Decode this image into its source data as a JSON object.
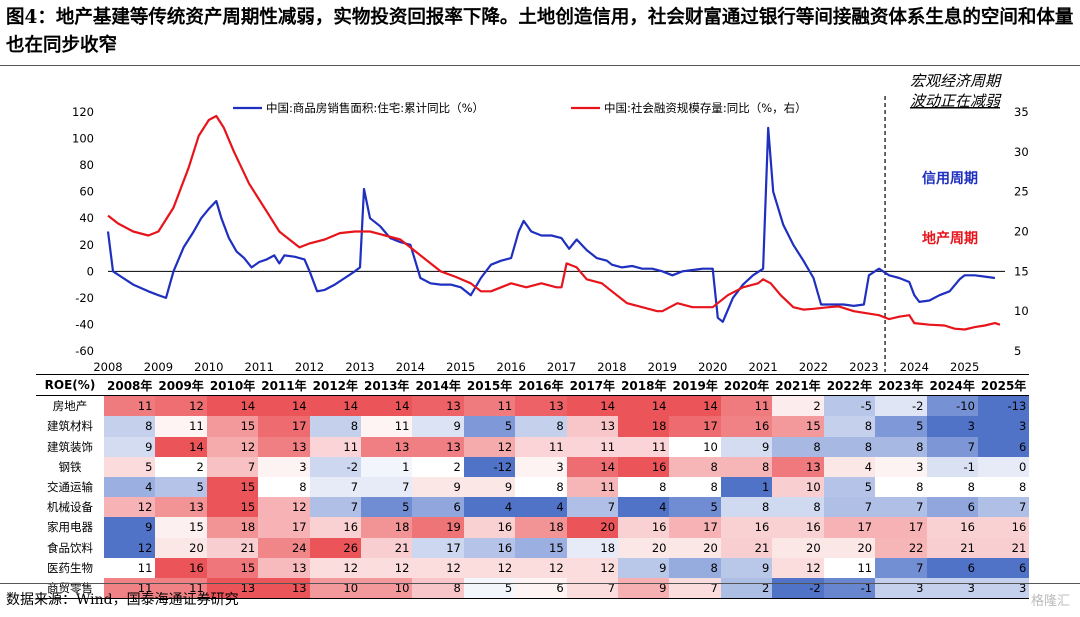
{
  "title": "图4：地产基建等传统资产周期性减弱，实物投资回报率下降。土地创造信用，社会财富通过银行等间接融资体系生息的空间和体量也在同步收窄",
  "source": "数据来源：Wind，国泰海通证券研究",
  "watermark": "格隆汇",
  "chart_data": {
    "type": "line",
    "x_ticks": [
      "2008",
      "2009",
      "2010",
      "2011",
      "2012",
      "2013",
      "2014",
      "2015",
      "2016",
      "2017",
      "2018",
      "2019",
      "2020",
      "2021",
      "2022",
      "2023",
      "2024",
      "2025"
    ],
    "ylim_left": [
      -60,
      120
    ],
    "yticks_left": [
      -60,
      -40,
      -20,
      0,
      20,
      40,
      60,
      80,
      100,
      120
    ],
    "ylim_right": [
      5,
      35
    ],
    "yticks_right": [
      5,
      10,
      15,
      20,
      25,
      30,
      35
    ],
    "annotations": {
      "top_right": "宏观经济周期波动正在减弱",
      "blue_label": "信用周期",
      "red_label": "地产周期"
    },
    "series": [
      {
        "name": "中国:商品房销售面积:住宅:累计同比（%）",
        "axis": "left",
        "color": "#1f2fbf",
        "points": [
          [
            2008.0,
            30
          ],
          [
            2008.1,
            0
          ],
          [
            2008.3,
            -5
          ],
          [
            2008.5,
            -10
          ],
          [
            2008.8,
            -15
          ],
          [
            2009.0,
            -18
          ],
          [
            2009.15,
            -20
          ],
          [
            2009.3,
            0
          ],
          [
            2009.5,
            18
          ],
          [
            2009.7,
            30
          ],
          [
            2009.85,
            40
          ],
          [
            2010.0,
            47
          ],
          [
            2010.15,
            53
          ],
          [
            2010.25,
            40
          ],
          [
            2010.4,
            25
          ],
          [
            2010.55,
            15
          ],
          [
            2010.7,
            10
          ],
          [
            2010.85,
            3
          ],
          [
            2011.0,
            7
          ],
          [
            2011.15,
            9
          ],
          [
            2011.3,
            12
          ],
          [
            2011.4,
            6
          ],
          [
            2011.5,
            12
          ],
          [
            2011.7,
            11
          ],
          [
            2011.9,
            9
          ],
          [
            2012.0,
            0
          ],
          [
            2012.15,
            -15
          ],
          [
            2012.3,
            -14
          ],
          [
            2012.5,
            -10
          ],
          [
            2012.7,
            -5
          ],
          [
            2012.9,
            0
          ],
          [
            2013.0,
            3
          ],
          [
            2013.08,
            62
          ],
          [
            2013.2,
            40
          ],
          [
            2013.4,
            34
          ],
          [
            2013.6,
            25
          ],
          [
            2013.8,
            22
          ],
          [
            2014.0,
            20
          ],
          [
            2014.2,
            -5
          ],
          [
            2014.4,
            -9
          ],
          [
            2014.6,
            -10
          ],
          [
            2014.8,
            -10
          ],
          [
            2015.0,
            -12
          ],
          [
            2015.2,
            -18
          ],
          [
            2015.4,
            -5
          ],
          [
            2015.6,
            5
          ],
          [
            2015.8,
            8
          ],
          [
            2016.0,
            10
          ],
          [
            2016.15,
            30
          ],
          [
            2016.25,
            38
          ],
          [
            2016.4,
            30
          ],
          [
            2016.6,
            27
          ],
          [
            2016.8,
            27
          ],
          [
            2017.0,
            25
          ],
          [
            2017.15,
            17
          ],
          [
            2017.3,
            24
          ],
          [
            2017.5,
            16
          ],
          [
            2017.7,
            10
          ],
          [
            2017.9,
            8
          ],
          [
            2018.0,
            5
          ],
          [
            2018.2,
            3
          ],
          [
            2018.4,
            4
          ],
          [
            2018.6,
            2
          ],
          [
            2018.8,
            2
          ],
          [
            2019.0,
            0
          ],
          [
            2019.2,
            -3
          ],
          [
            2019.4,
            0
          ],
          [
            2019.6,
            1
          ],
          [
            2019.8,
            2
          ],
          [
            2020.0,
            2
          ],
          [
            2020.1,
            -35
          ],
          [
            2020.2,
            -38
          ],
          [
            2020.4,
            -20
          ],
          [
            2020.6,
            -10
          ],
          [
            2020.8,
            -3
          ],
          [
            2021.0,
            2
          ],
          [
            2021.1,
            108
          ],
          [
            2021.2,
            60
          ],
          [
            2021.4,
            35
          ],
          [
            2021.6,
            20
          ],
          [
            2021.8,
            8
          ],
          [
            2022.0,
            -5
          ],
          [
            2022.15,
            -25
          ],
          [
            2022.35,
            -25
          ],
          [
            2022.6,
            -25
          ],
          [
            2022.8,
            -26
          ],
          [
            2023.0,
            -25
          ],
          [
            2023.1,
            -3
          ],
          [
            2023.3,
            2
          ],
          [
            2023.5,
            -3
          ],
          [
            2023.7,
            -5
          ],
          [
            2023.9,
            -8
          ],
          [
            2024.0,
            -18
          ],
          [
            2024.1,
            -23
          ],
          [
            2024.3,
            -22
          ],
          [
            2024.5,
            -18
          ],
          [
            2024.7,
            -15
          ],
          [
            2024.9,
            -6
          ],
          [
            2025.0,
            -3
          ],
          [
            2025.2,
            -3
          ],
          [
            2025.4,
            -4
          ],
          [
            2025.6,
            -5
          ]
        ]
      },
      {
        "name": "中国:社会融资规模存量:同比（%，右）",
        "axis": "right",
        "color": "#e8141b",
        "points": [
          [
            2008.0,
            22
          ],
          [
            2008.2,
            21
          ],
          [
            2008.5,
            20
          ],
          [
            2008.8,
            19.5
          ],
          [
            2009.0,
            20
          ],
          [
            2009.3,
            23
          ],
          [
            2009.6,
            28
          ],
          [
            2009.8,
            32
          ],
          [
            2010.0,
            34
          ],
          [
            2010.15,
            34.5
          ],
          [
            2010.3,
            33
          ],
          [
            2010.5,
            30
          ],
          [
            2010.8,
            26
          ],
          [
            2011.0,
            24
          ],
          [
            2011.2,
            22
          ],
          [
            2011.4,
            20
          ],
          [
            2011.6,
            19
          ],
          [
            2011.8,
            18
          ],
          [
            2012.0,
            18.5
          ],
          [
            2012.3,
            19
          ],
          [
            2012.6,
            19.8
          ],
          [
            2012.9,
            20
          ],
          [
            2013.2,
            20
          ],
          [
            2013.5,
            19.5
          ],
          [
            2013.8,
            19
          ],
          [
            2014.0,
            18
          ],
          [
            2014.3,
            16.5
          ],
          [
            2014.6,
            15
          ],
          [
            2014.9,
            14.3
          ],
          [
            2015.2,
            13.5
          ],
          [
            2015.4,
            12.5
          ],
          [
            2015.6,
            12.5
          ],
          [
            2015.8,
            13
          ],
          [
            2016.0,
            13.5
          ],
          [
            2016.3,
            13
          ],
          [
            2016.6,
            13.5
          ],
          [
            2016.9,
            13
          ],
          [
            2017.0,
            13
          ],
          [
            2017.1,
            16
          ],
          [
            2017.3,
            15.5
          ],
          [
            2017.5,
            14
          ],
          [
            2017.8,
            13.5
          ],
          [
            2018.0,
            12.5
          ],
          [
            2018.3,
            11
          ],
          [
            2018.6,
            10.5
          ],
          [
            2018.9,
            10
          ],
          [
            2019.0,
            10
          ],
          [
            2019.3,
            11
          ],
          [
            2019.6,
            10.5
          ],
          [
            2019.9,
            10.5
          ],
          [
            2020.0,
            10.5
          ],
          [
            2020.3,
            12
          ],
          [
            2020.6,
            13
          ],
          [
            2020.9,
            13.5
          ],
          [
            2021.0,
            14
          ],
          [
            2021.15,
            13.5
          ],
          [
            2021.35,
            12
          ],
          [
            2021.6,
            10.5
          ],
          [
            2021.8,
            10.2
          ],
          [
            2022.0,
            10.3
          ],
          [
            2022.3,
            10.5
          ],
          [
            2022.5,
            10.6
          ],
          [
            2022.8,
            10
          ],
          [
            2023.0,
            9.8
          ],
          [
            2023.3,
            9.5
          ],
          [
            2023.5,
            9
          ],
          [
            2023.7,
            9.3
          ],
          [
            2023.9,
            9.5
          ],
          [
            2024.0,
            8.5
          ],
          [
            2024.3,
            8.3
          ],
          [
            2024.6,
            8.2
          ],
          [
            2024.8,
            7.8
          ],
          [
            2025.0,
            7.7
          ],
          [
            2025.2,
            8
          ],
          [
            2025.4,
            8.2
          ],
          [
            2025.6,
            8.5
          ],
          [
            2025.7,
            8.3
          ]
        ]
      }
    ]
  },
  "table": {
    "corner": "ROE(%)",
    "years": [
      "2008年",
      "2009年",
      "2010年",
      "2011年",
      "2012年",
      "2013年",
      "2014年",
      "2015年",
      "2016年",
      "2017年",
      "2018年",
      "2019年",
      "2020年",
      "2021年",
      "2022年",
      "2023年",
      "2024年",
      "2025年"
    ],
    "rows": [
      {
        "label": "房地产",
        "values": [
          11,
          12,
          14,
          14,
          14,
          14,
          13,
          11,
          13,
          14,
          14,
          14,
          11,
          2,
          -5,
          -2,
          -10,
          -13
        ]
      },
      {
        "label": "建筑材料",
        "values": [
          8,
          11,
          15,
          17,
          8,
          11,
          9,
          5,
          8,
          13,
          18,
          17,
          16,
          15,
          8,
          5,
          3,
          3
        ]
      },
      {
        "label": "建筑装饰",
        "values": [
          9,
          14,
          12,
          13,
          11,
          13,
          13,
          12,
          11,
          11,
          11,
          10,
          9,
          8,
          8,
          8,
          7,
          6
        ]
      },
      {
        "label": "钢铁",
        "values": [
          5,
          2,
          7,
          3,
          -2,
          1,
          2,
          -12,
          3,
          14,
          16,
          8,
          8,
          13,
          4,
          3,
          -1,
          0
        ]
      },
      {
        "label": "交通运输",
        "values": [
          4,
          5,
          15,
          8,
          7,
          7,
          9,
          9,
          8,
          11,
          8,
          8,
          1,
          10,
          5,
          8,
          8,
          8
        ]
      },
      {
        "label": "机械设备",
        "values": [
          12,
          13,
          15,
          12,
          7,
          5,
          6,
          4,
          4,
          7,
          4,
          5,
          8,
          8,
          7,
          7,
          6,
          7
        ]
      },
      {
        "label": "家用电器",
        "values": [
          9,
          15,
          18,
          17,
          16,
          18,
          19,
          16,
          18,
          20,
          16,
          17,
          16,
          16,
          17,
          17,
          16,
          16
        ]
      },
      {
        "label": "食品饮料",
        "values": [
          12,
          20,
          21,
          24,
          26,
          21,
          17,
          16,
          15,
          18,
          20,
          20,
          21,
          20,
          20,
          22,
          21,
          21
        ]
      },
      {
        "label": "医药生物",
        "values": [
          11,
          16,
          15,
          13,
          12,
          12,
          12,
          12,
          12,
          12,
          9,
          8,
          9,
          12,
          11,
          7,
          6,
          6
        ]
      },
      {
        "label": "商贸零售",
        "values": [
          11,
          11,
          13,
          13,
          10,
          10,
          8,
          5,
          6,
          7,
          9,
          7,
          2,
          -2,
          -1,
          3,
          3,
          3
        ]
      }
    ]
  }
}
